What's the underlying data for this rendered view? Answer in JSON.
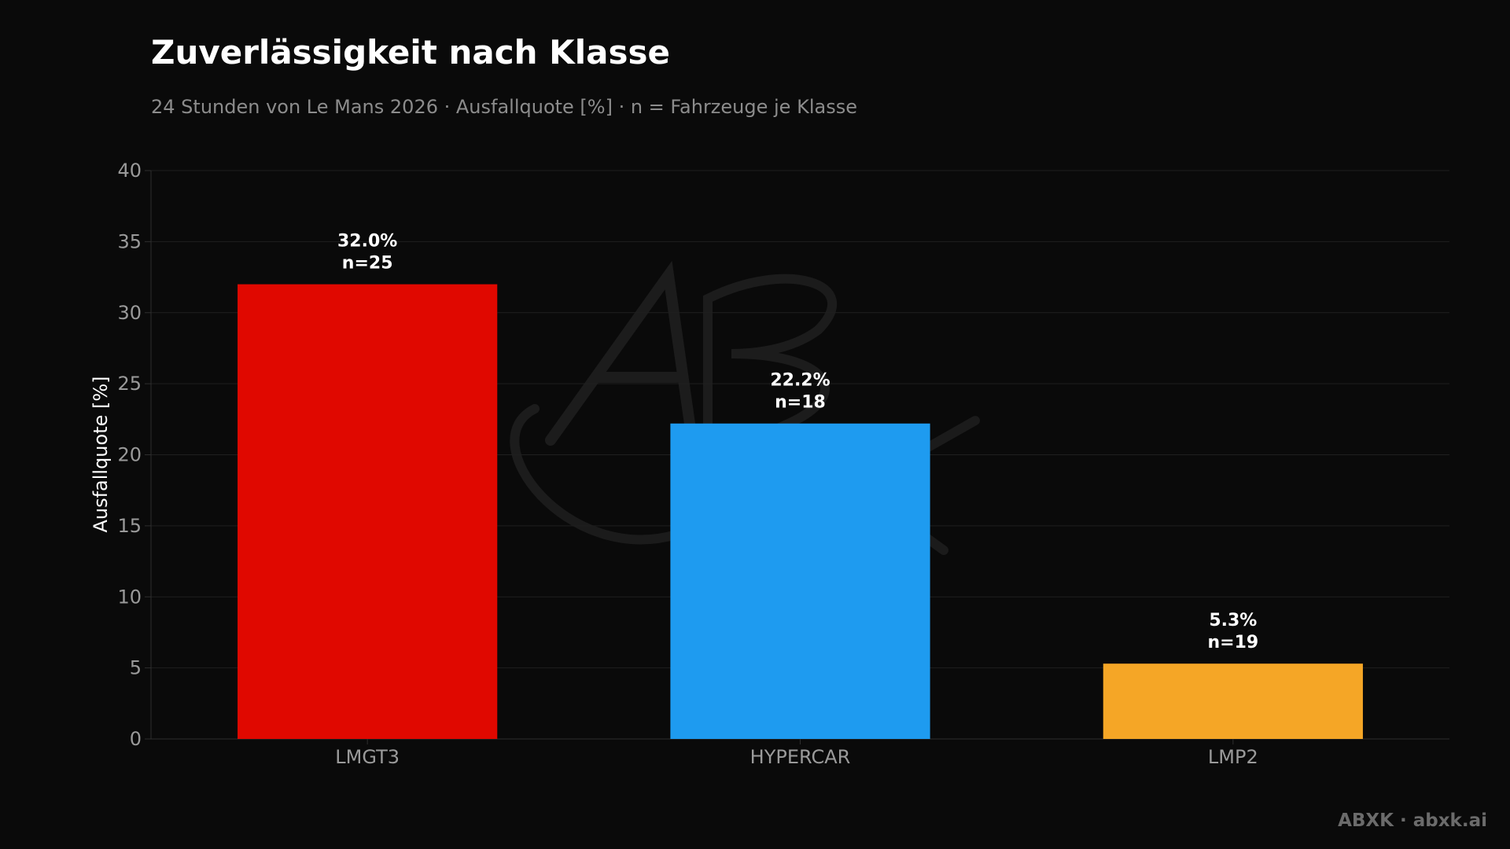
{
  "header": {
    "title": "Zuverlässigkeit nach Klasse",
    "subtitle": "24 Stunden von Le Mans 2026 · Ausfallquote [%] · n = Fahrzeuge je Klasse"
  },
  "footer": {
    "credit": "ABXK · abxk.ai"
  },
  "watermark": {
    "text": "ABXK"
  },
  "chart_data": {
    "type": "bar",
    "title": "Zuverlässigkeit nach Klasse",
    "subtitle": "24 Stunden von Le Mans 2026 · Ausfallquote [%] · n = Fahrzeuge je Klasse",
    "xlabel": "",
    "ylabel": "Ausfallquote [%]",
    "ylim": [
      0,
      40
    ],
    "yticks": [
      0,
      5,
      10,
      15,
      20,
      25,
      30,
      35,
      40
    ],
    "grid": true,
    "categories": [
      "LMGT3",
      "HYPERCAR",
      "LMP2"
    ],
    "values": [
      32.0,
      22.2,
      5.3
    ],
    "value_labels": [
      "32.0%",
      "22.2%",
      "5.3%"
    ],
    "n_labels": [
      "n=25",
      "n=18",
      "n=19"
    ],
    "colors": [
      "#e00800",
      "#1e9bf0",
      "#f5a626"
    ]
  },
  "theme": {
    "background": "#0a0a0a",
    "grid": "#1f1f1f",
    "axis": "#2e2e2e"
  }
}
